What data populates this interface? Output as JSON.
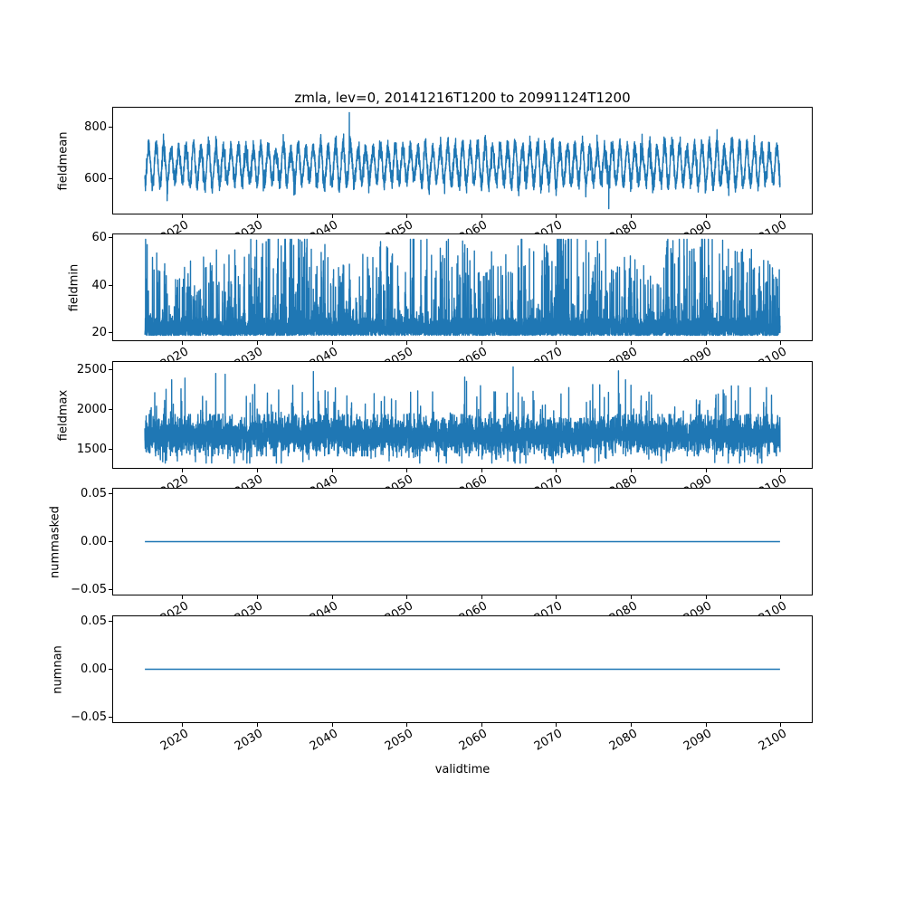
{
  "figure": {
    "title": "zmla, lev=0, 20141216T1200 to 20991124T1200",
    "xlabel": "validtime",
    "line_color": "#1f77b4",
    "background_color": "#ffffff",
    "spine_color": "#000000",
    "text_color": "#000000"
  },
  "x_axis": {
    "xlim": [
      2010.71,
      2104.15
    ],
    "data_x_range": [
      2014.96,
      2099.9
    ],
    "tick_values": [
      2020,
      2030,
      2040,
      2050,
      2060,
      2070,
      2080,
      2090,
      2100
    ],
    "tick_labels": [
      "2020",
      "2030",
      "2040",
      "2050",
      "2060",
      "2070",
      "2080",
      "2090",
      "2100"
    ],
    "tick_rotation_deg": 30
  },
  "chart_data": [
    {
      "type": "line",
      "ylabel": "fieldmean",
      "ylim": [
        463,
        874
      ],
      "ytick_values": [
        800,
        600
      ],
      "ytick_labels": [
        "800",
        "600"
      ],
      "stats": {
        "min": 482,
        "max": 855,
        "mean": 652,
        "annual_cycle": true
      },
      "seed": 101,
      "n_points": 6000,
      "model": {
        "kind": "seasonal",
        "base": 652,
        "amp_min": 55,
        "amp_max": 85,
        "phase": 0.22,
        "noise": 17,
        "spike_prob": 0.004,
        "clip": [
          482,
          855
        ],
        "force": [
          {
            "x": 2042.3,
            "v": 855
          },
          {
            "x": 2077.0,
            "v": 482
          }
        ]
      }
    },
    {
      "type": "line",
      "ylabel": "fieldmin",
      "ylim": [
        16.6,
        61.5
      ],
      "ytick_values": [
        60,
        40,
        20
      ],
      "ytick_labels": [
        "60",
        "40",
        "20"
      ],
      "stats": {
        "min": 18.6,
        "max": 59.4,
        "baseline": 21
      },
      "seed": 202,
      "n_points": 6000,
      "model": {
        "kind": "spiky_floor",
        "floor": 18.7,
        "band": 7.5,
        "spike_prob": 0.16,
        "spike_scale": 26,
        "mod_period": 19,
        "mod_phase": 2004,
        "clip": [
          18.6,
          59.4
        ],
        "force": [
          {
            "x": 2076.6,
            "v": 59.4
          },
          {
            "x": 2044.1,
            "v": 53.0
          }
        ]
      }
    },
    {
      "type": "line",
      "ylabel": "fieldmax",
      "ylim": [
        1261,
        2591
      ],
      "ytick_values": [
        2500,
        2000,
        1500
      ],
      "ytick_labels": [
        "2500",
        "2000",
        "1500"
      ],
      "stats": {
        "min": 1321,
        "max": 2530,
        "mean": 1690
      },
      "seed": 303,
      "n_points": 6000,
      "model": {
        "kind": "noisy_band",
        "base": 1672,
        "band": 112,
        "up_prob": 0.05,
        "up_scale": 680,
        "down_prob": 0.07,
        "down_scale": 310,
        "clip": [
          1321,
          2530
        ],
        "force": [
          {
            "x": 2037.5,
            "v": 2470
          },
          {
            "x": 2064.2,
            "v": 2530
          },
          {
            "x": 2078.3,
            "v": 2480
          }
        ]
      }
    },
    {
      "type": "line",
      "ylabel": "nummasked",
      "ylim": [
        -0.055,
        0.055
      ],
      "ytick_values": [
        0.05,
        0.0,
        -0.05
      ],
      "ytick_labels": [
        "0.05",
        "0.00",
        "−0.05"
      ],
      "stats": {
        "min": 0,
        "max": 0,
        "constant": true
      },
      "seed": 404,
      "n_points": 20,
      "model": {
        "kind": "constant",
        "value": 0
      }
    },
    {
      "type": "line",
      "ylabel": "numnan",
      "ylim": [
        -0.055,
        0.055
      ],
      "ytick_values": [
        0.05,
        0.0,
        -0.05
      ],
      "ytick_labels": [
        "0.05",
        "0.00",
        "−0.05"
      ],
      "stats": {
        "min": 0,
        "max": 0,
        "constant": true
      },
      "seed": 505,
      "n_points": 20,
      "model": {
        "kind": "constant",
        "value": 0
      }
    }
  ]
}
